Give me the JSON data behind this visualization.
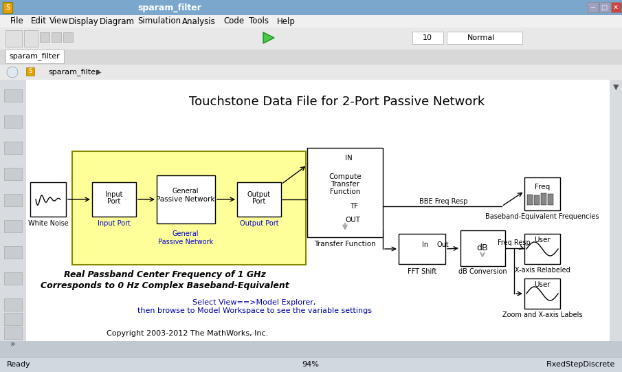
{
  "title_bar": "sparam_filter",
  "menu_items": [
    "File",
    "Edit",
    "View",
    "Display",
    "Diagram",
    "Simulation",
    "Analysis",
    "Code",
    "Tools",
    "Help"
  ],
  "breadcrumb": "sparam_filter",
  "sim_value": "10",
  "sim_mode": "Normal",
  "diagram_title": "Touchstone Data File for 2-Port Passive Network",
  "status_left": "Ready",
  "status_center": "94%",
  "status_right": "FixedStepDiscrete",
  "italic_text1": "Real Passband Center Frequency of 1 GHz",
  "italic_text2": "Corresponds to 0 Hz Complex Baseband-Equivalent",
  "select_view_text1": "Select View==>Model Explorer,",
  "select_view_text2": "then browse to Model Workspace to see the variable settings",
  "copyright_text": "Copyright 2003-2012 The MathWorks, Inc.",
  "bg_title": "#c8d8e8",
  "bg_menu": "#e8e8e8",
  "bg_toolbar": "#e8e8e8",
  "bg_canvas": "#ffffff",
  "bg_status": "#d0d8e0",
  "bg_yellow_box": "#ffff99",
  "color_block_border": "#000000",
  "color_block_fill": "#ffffff",
  "color_arrow": "#000000",
  "color_text_dark": "#000000",
  "color_text_blue": "#0000aa",
  "color_label_blue": "#0000cc",
  "window_title_bg": "#6090c0",
  "window_title_text": "#ffffff"
}
